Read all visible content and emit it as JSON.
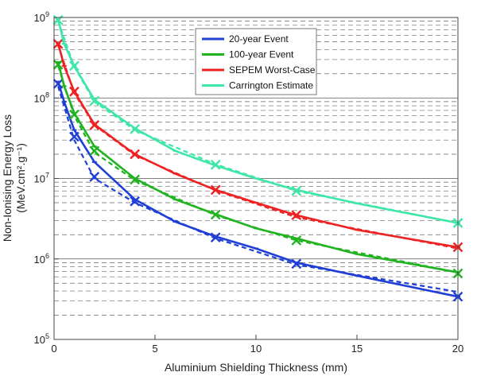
{
  "chart_data": {
    "type": "line",
    "xlabel": "Aluminium Shielding Thickness (mm)",
    "ylabel_line1": "Non-Ionising Energy Loss",
    "ylabel_line2": "(MeV.cm².g⁻¹)",
    "x_scale": "linear",
    "y_scale": "log",
    "xlim": [
      0,
      20
    ],
    "ylim": [
      100000,
      1000000000
    ],
    "x_ticks": [
      0,
      5,
      10,
      15,
      20
    ],
    "x_tick_labels": [
      "0",
      "5",
      "10",
      "15",
      "20"
    ],
    "y_ticks": [
      100000,
      1000000,
      10000000,
      100000000,
      1000000000
    ],
    "y_tick_base": "10",
    "y_tick_exponents": [
      "5",
      "6",
      "7",
      "8",
      "9"
    ],
    "grid": "horizontal dashed at minor decades, solid at major decades",
    "legend_position": "top-center",
    "series": [
      {
        "name": "20-year Event",
        "color": "#1f3fd6",
        "solid": {
          "x": [
            0.2,
            0.5,
            1,
            2,
            4,
            6,
            8,
            10,
            12,
            15,
            20
          ],
          "y": [
            160000000,
            90000000,
            40000000,
            16000000,
            5500000,
            2900000,
            1900000,
            1350000,
            900000,
            620000,
            340000
          ]
        },
        "dashed": {
          "x": [
            0.2,
            1,
            2,
            4,
            8,
            12,
            20
          ],
          "y": [
            140000000,
            30000000,
            10000000,
            5000000,
            1800000,
            850000,
            390000
          ]
        },
        "markers": {
          "x": [
            0.2,
            1,
            2,
            4,
            8,
            12,
            20
          ],
          "y": [
            150000000,
            33000000,
            10500000,
            5200000,
            1850000,
            870000,
            340000
          ]
        }
      },
      {
        "name": "100-year Event",
        "color": "#22b322",
        "solid": {
          "x": [
            0.2,
            0.5,
            1,
            2,
            4,
            6,
            8,
            10,
            12,
            15,
            20
          ],
          "y": [
            280000000,
            140000000,
            65000000,
            25000000,
            10000000,
            5500000,
            3600000,
            2400000,
            1800000,
            1150000,
            680000
          ]
        },
        "dashed": {
          "x": [
            0.2,
            1,
            2,
            4,
            8,
            12,
            20
          ],
          "y": [
            250000000,
            60000000,
            21000000,
            9500000,
            3500000,
            1700000,
            680000
          ]
        },
        "markers": {
          "x": [
            0.2,
            1,
            2,
            4,
            8,
            12,
            20
          ],
          "y": [
            260000000,
            62000000,
            22000000,
            9700000,
            3550000,
            1700000,
            660000
          ]
        }
      },
      {
        "name": "SEPEM Worst-Case",
        "color": "#ee2222",
        "solid": {
          "x": [
            0.2,
            0.5,
            1,
            2,
            4,
            6,
            8,
            10,
            12,
            15,
            20
          ],
          "y": [
            480000000,
            250000000,
            120000000,
            47000000,
            20000000,
            11500000,
            7200000,
            5000000,
            3500000,
            2300000,
            1400000
          ]
        },
        "dashed": {
          "x": [
            0.2,
            1,
            2,
            4,
            8,
            12,
            20
          ],
          "y": [
            450000000,
            115000000,
            46000000,
            19500000,
            7100000,
            3300000,
            1350000
          ]
        },
        "markers": {
          "x": [
            0.2,
            1,
            2,
            4,
            8,
            12,
            20
          ],
          "y": [
            470000000,
            120000000,
            46000000,
            20000000,
            7200000,
            3500000,
            1400000
          ]
        }
      },
      {
        "name": "Carrington Estimate",
        "color": "#3ee6a8",
        "solid": {
          "x": [
            0.2,
            0.5,
            1,
            2,
            4,
            6,
            8,
            10,
            12,
            15,
            20
          ],
          "y": [
            950000000,
            470000000,
            250000000,
            95000000,
            42000000,
            22000000,
            14500000,
            10000000,
            7200000,
            4900000,
            2800000
          ]
        },
        "dashed": {
          "x": [
            0.2,
            1,
            2,
            4,
            8,
            12,
            20
          ],
          "y": [
            900000000,
            245000000,
            90000000,
            40000000,
            15000000,
            7000000,
            2800000
          ]
        },
        "markers": {
          "x": [
            0.2,
            1,
            2,
            4,
            8,
            12,
            20
          ],
          "y": [
            930000000,
            250000000,
            92000000,
            41000000,
            14800000,
            7000000,
            2800000
          ]
        }
      }
    ]
  }
}
